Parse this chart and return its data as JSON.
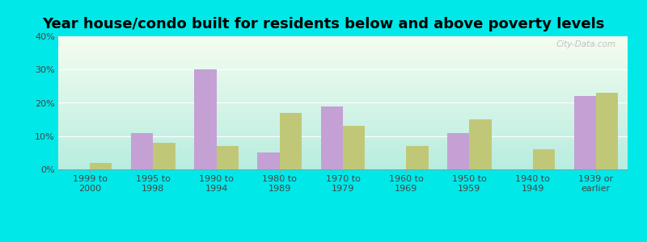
{
  "title": "Year house/condo built for residents below and above poverty levels",
  "categories": [
    "1999 to\n2000",
    "1995 to\n1998",
    "1990 to\n1994",
    "1980 to\n1989",
    "1970 to\n1979",
    "1960 to\n1969",
    "1950 to\n1959",
    "1940 to\n1949",
    "1939 or\nearlier"
  ],
  "below_poverty": [
    0,
    11,
    30,
    5,
    19,
    0,
    11,
    0,
    22
  ],
  "above_poverty": [
    2,
    8,
    7,
    17,
    13,
    7,
    15,
    6,
    23
  ],
  "below_color": "#c4a0d4",
  "above_color": "#c0c878",
  "background_outer": "#00e8e8",
  "background_inner_top": "#f5fdf0",
  "background_inner_bottom": "#b8ede0",
  "ylim": [
    0,
    40
  ],
  "yticks": [
    0,
    10,
    20,
    30,
    40
  ],
  "bar_width": 0.35,
  "title_fontsize": 13,
  "tick_fontsize": 8,
  "legend_fontsize": 9,
  "grid_color": "#ffffff",
  "watermark_text": "City-Data.com"
}
